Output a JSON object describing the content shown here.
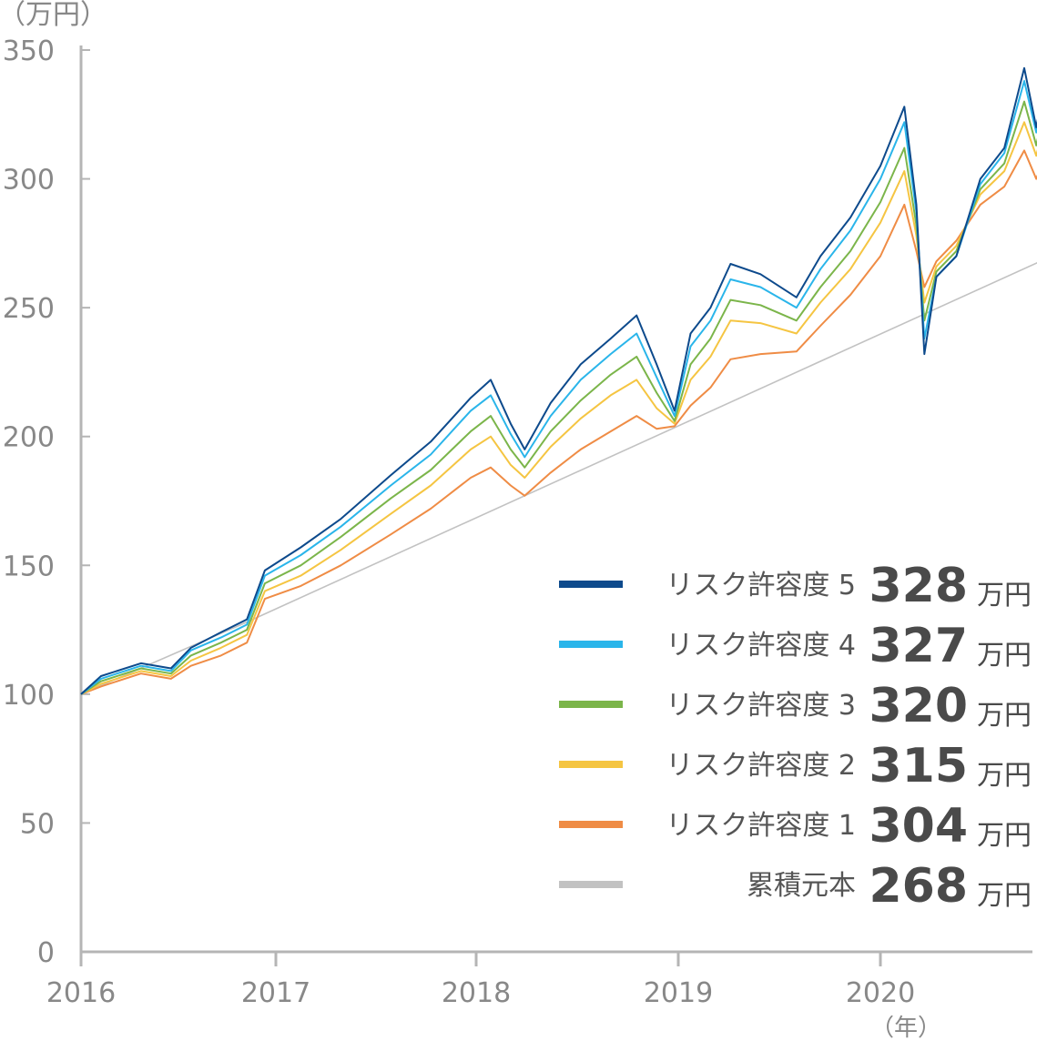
{
  "chart_data": {
    "type": "line",
    "y_unit_label": "（万円）",
    "x_unit_label": "（年）",
    "ylim": [
      0,
      350
    ],
    "y_ticks": [
      "0",
      "50",
      "100",
      "150",
      "200",
      "250",
      "300",
      "350"
    ],
    "x_ticks": [
      "2016",
      "2017",
      "2018",
      "2019",
      "2020"
    ],
    "grid": false,
    "legend_position": "bottom-right",
    "series": [
      {
        "name": "リスク許容度 5",
        "color": "#0d4a8c",
        "final_value": "328",
        "unit": "万円",
        "points": [
          [
            2016.0,
            100
          ],
          [
            2016.1,
            107
          ],
          [
            2016.3,
            112
          ],
          [
            2016.45,
            110
          ],
          [
            2016.55,
            118
          ],
          [
            2016.7,
            124
          ],
          [
            2016.83,
            129
          ],
          [
            2016.92,
            148
          ],
          [
            2017.1,
            157
          ],
          [
            2017.3,
            168
          ],
          [
            2017.55,
            185
          ],
          [
            2017.75,
            198
          ],
          [
            2017.95,
            215
          ],
          [
            2018.05,
            222
          ],
          [
            2018.15,
            205
          ],
          [
            2018.22,
            195
          ],
          [
            2018.35,
            213
          ],
          [
            2018.5,
            228
          ],
          [
            2018.65,
            238
          ],
          [
            2018.78,
            247
          ],
          [
            2018.88,
            228
          ],
          [
            2018.97,
            210
          ],
          [
            2019.05,
            240
          ],
          [
            2019.15,
            250
          ],
          [
            2019.25,
            267
          ],
          [
            2019.4,
            263
          ],
          [
            2019.58,
            254
          ],
          [
            2019.7,
            270
          ],
          [
            2019.85,
            285
          ],
          [
            2020.0,
            305
          ],
          [
            2020.12,
            328
          ],
          [
            2020.18,
            290
          ],
          [
            2020.22,
            232
          ],
          [
            2020.28,
            262
          ],
          [
            2020.38,
            270
          ],
          [
            2020.5,
            300
          ],
          [
            2020.62,
            312
          ],
          [
            2020.72,
            343
          ],
          [
            2020.78,
            320
          ],
          [
            2020.8,
            328
          ]
        ]
      },
      {
        "name": "リスク許容度 4",
        "color": "#2ab5ea",
        "final_value": "327",
        "unit": "万円",
        "points": [
          [
            2016.0,
            100
          ],
          [
            2016.1,
            106
          ],
          [
            2016.3,
            111
          ],
          [
            2016.45,
            109
          ],
          [
            2016.55,
            117
          ],
          [
            2016.7,
            122
          ],
          [
            2016.83,
            127
          ],
          [
            2016.92,
            146
          ],
          [
            2017.1,
            154
          ],
          [
            2017.3,
            165
          ],
          [
            2017.55,
            181
          ],
          [
            2017.75,
            193
          ],
          [
            2017.95,
            210
          ],
          [
            2018.05,
            216
          ],
          [
            2018.15,
            201
          ],
          [
            2018.22,
            192
          ],
          [
            2018.35,
            208
          ],
          [
            2018.5,
            222
          ],
          [
            2018.65,
            232
          ],
          [
            2018.78,
            240
          ],
          [
            2018.88,
            223
          ],
          [
            2018.97,
            208
          ],
          [
            2019.05,
            235
          ],
          [
            2019.15,
            245
          ],
          [
            2019.25,
            261
          ],
          [
            2019.4,
            258
          ],
          [
            2019.58,
            250
          ],
          [
            2019.7,
            265
          ],
          [
            2019.85,
            280
          ],
          [
            2020.0,
            300
          ],
          [
            2020.12,
            322
          ],
          [
            2020.18,
            287
          ],
          [
            2020.22,
            238
          ],
          [
            2020.28,
            262
          ],
          [
            2020.38,
            270
          ],
          [
            2020.5,
            298
          ],
          [
            2020.62,
            310
          ],
          [
            2020.72,
            338
          ],
          [
            2020.78,
            318
          ],
          [
            2020.8,
            327
          ]
        ]
      },
      {
        "name": "リスク許容度 3",
        "color": "#7bb54a",
        "final_value": "320",
        "unit": "万円",
        "points": [
          [
            2016.0,
            100
          ],
          [
            2016.1,
            105
          ],
          [
            2016.3,
            110
          ],
          [
            2016.45,
            108
          ],
          [
            2016.55,
            115
          ],
          [
            2016.7,
            120
          ],
          [
            2016.83,
            125
          ],
          [
            2016.92,
            143
          ],
          [
            2017.1,
            150
          ],
          [
            2017.3,
            161
          ],
          [
            2017.55,
            176
          ],
          [
            2017.75,
            187
          ],
          [
            2017.95,
            202
          ],
          [
            2018.05,
            208
          ],
          [
            2018.15,
            195
          ],
          [
            2018.22,
            188
          ],
          [
            2018.35,
            202
          ],
          [
            2018.5,
            214
          ],
          [
            2018.65,
            224
          ],
          [
            2018.78,
            231
          ],
          [
            2018.88,
            217
          ],
          [
            2018.97,
            206
          ],
          [
            2019.05,
            228
          ],
          [
            2019.15,
            238
          ],
          [
            2019.25,
            253
          ],
          [
            2019.4,
            251
          ],
          [
            2019.58,
            245
          ],
          [
            2019.7,
            258
          ],
          [
            2019.85,
            272
          ],
          [
            2020.0,
            291
          ],
          [
            2020.12,
            312
          ],
          [
            2020.18,
            282
          ],
          [
            2020.22,
            245
          ],
          [
            2020.28,
            264
          ],
          [
            2020.38,
            272
          ],
          [
            2020.5,
            296
          ],
          [
            2020.62,
            306
          ],
          [
            2020.72,
            330
          ],
          [
            2020.78,
            313
          ],
          [
            2020.8,
            320
          ]
        ]
      },
      {
        "name": "リスク許容度 2",
        "color": "#f5c542",
        "final_value": "315",
        "unit": "万円",
        "points": [
          [
            2016.0,
            100
          ],
          [
            2016.1,
            104
          ],
          [
            2016.3,
            109
          ],
          [
            2016.45,
            107
          ],
          [
            2016.55,
            113
          ],
          [
            2016.7,
            118
          ],
          [
            2016.83,
            123
          ],
          [
            2016.92,
            140
          ],
          [
            2017.1,
            146
          ],
          [
            2017.3,
            156
          ],
          [
            2017.55,
            170
          ],
          [
            2017.75,
            181
          ],
          [
            2017.95,
            195
          ],
          [
            2018.05,
            200
          ],
          [
            2018.15,
            189
          ],
          [
            2018.22,
            184
          ],
          [
            2018.35,
            196
          ],
          [
            2018.5,
            207
          ],
          [
            2018.65,
            216
          ],
          [
            2018.78,
            222
          ],
          [
            2018.88,
            211
          ],
          [
            2018.97,
            205
          ],
          [
            2019.05,
            222
          ],
          [
            2019.15,
            231
          ],
          [
            2019.25,
            245
          ],
          [
            2019.4,
            244
          ],
          [
            2019.58,
            240
          ],
          [
            2019.7,
            252
          ],
          [
            2019.85,
            265
          ],
          [
            2020.0,
            283
          ],
          [
            2020.12,
            303
          ],
          [
            2020.18,
            278
          ],
          [
            2020.22,
            252
          ],
          [
            2020.28,
            266
          ],
          [
            2020.38,
            274
          ],
          [
            2020.5,
            294
          ],
          [
            2020.62,
            303
          ],
          [
            2020.72,
            322
          ],
          [
            2020.78,
            309
          ],
          [
            2020.8,
            315
          ]
        ]
      },
      {
        "name": "リスク許容度 1",
        "color": "#ef8c45",
        "final_value": "304",
        "unit": "万円",
        "points": [
          [
            2016.0,
            100
          ],
          [
            2016.1,
            103
          ],
          [
            2016.3,
            108
          ],
          [
            2016.45,
            106
          ],
          [
            2016.55,
            111
          ],
          [
            2016.7,
            115
          ],
          [
            2016.83,
            120
          ],
          [
            2016.92,
            137
          ],
          [
            2017.1,
            142
          ],
          [
            2017.3,
            150
          ],
          [
            2017.55,
            162
          ],
          [
            2017.75,
            172
          ],
          [
            2017.95,
            184
          ],
          [
            2018.05,
            188
          ],
          [
            2018.15,
            181
          ],
          [
            2018.22,
            177
          ],
          [
            2018.35,
            186
          ],
          [
            2018.5,
            195
          ],
          [
            2018.65,
            202
          ],
          [
            2018.78,
            208
          ],
          [
            2018.88,
            203
          ],
          [
            2018.97,
            204
          ],
          [
            2019.05,
            212
          ],
          [
            2019.15,
            219
          ],
          [
            2019.25,
            230
          ],
          [
            2019.4,
            232
          ],
          [
            2019.58,
            233
          ],
          [
            2019.7,
            243
          ],
          [
            2019.85,
            255
          ],
          [
            2020.0,
            270
          ],
          [
            2020.12,
            290
          ],
          [
            2020.18,
            272
          ],
          [
            2020.22,
            258
          ],
          [
            2020.28,
            268
          ],
          [
            2020.38,
            276
          ],
          [
            2020.5,
            290
          ],
          [
            2020.62,
            297
          ],
          [
            2020.72,
            311
          ],
          [
            2020.78,
            300
          ],
          [
            2020.8,
            304
          ]
        ]
      },
      {
        "name": "累積元本",
        "color": "#c2c2c2",
        "final_value": "268",
        "unit": "万円",
        "points": [
          [
            2016.0,
            100
          ],
          [
            2016.83,
            128
          ],
          [
            2020.8,
            268
          ]
        ]
      }
    ]
  }
}
